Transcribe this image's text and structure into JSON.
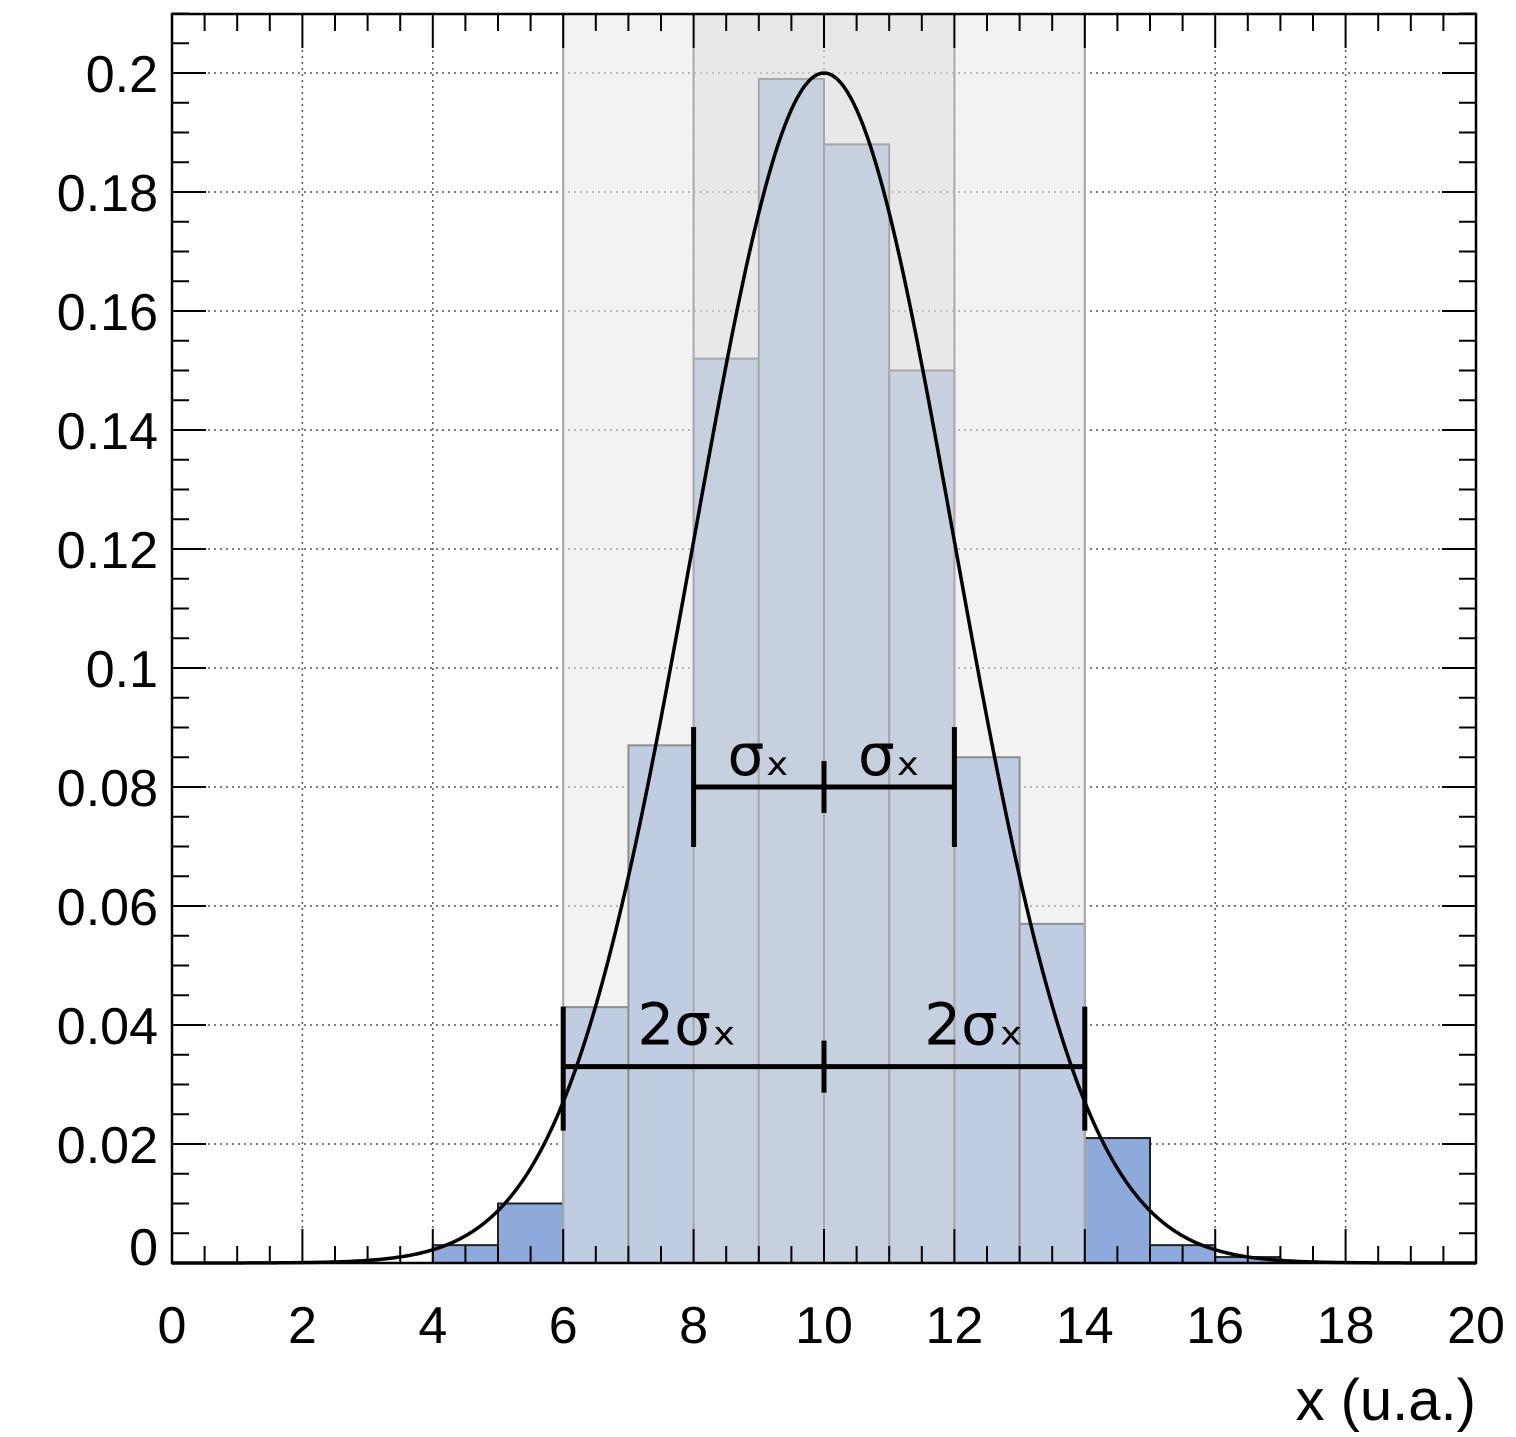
{
  "chart_data": {
    "type": "bar",
    "title": "",
    "xlabel": "x (u.a.)",
    "ylabel": "",
    "xlim": [
      0,
      20
    ],
    "ylim": [
      0,
      0.21
    ],
    "grid": true,
    "x_ticks": [
      "0",
      "2",
      "4",
      "6",
      "8",
      "10",
      "12",
      "14",
      "16",
      "18",
      "20"
    ],
    "y_ticks": [
      "0",
      "0.02",
      "0.04",
      "0.06",
      "0.08",
      "0.1",
      "0.12",
      "0.14",
      "0.16",
      "0.18",
      "0.2"
    ],
    "bin_edges": [
      0,
      1,
      2,
      3,
      4,
      5,
      6,
      7,
      8,
      9,
      10,
      11,
      12,
      13,
      14,
      15,
      16,
      17,
      18,
      19,
      20
    ],
    "values": [
      0,
      0,
      0,
      0,
      0.003,
      0.01,
      0.043,
      0.087,
      0.152,
      0.199,
      0.188,
      0.15,
      0.085,
      0.057,
      0.021,
      0.003,
      0.001,
      0,
      0,
      0
    ],
    "gaussian_fit": {
      "mean": 10,
      "sigma": 2,
      "amplitude": 0.2
    },
    "bands": [
      {
        "from": 6,
        "to": 14,
        "name": "2σ"
      },
      {
        "from": 8,
        "to": 12,
        "name": "1σ"
      }
    ],
    "annotations": [
      {
        "text": "σₓ",
        "x": 9
      },
      {
        "text": "σₓ",
        "x": 11
      },
      {
        "text": "2σₓ",
        "x": 7.9
      },
      {
        "text": "2σₓ",
        "x": 12.3
      }
    ],
    "colors": {
      "bar_fill": "#8eaadb",
      "bar_stroke": "#222222",
      "band_outer": "#e8e8e8",
      "band_inner": "#d6d6d6",
      "curve": "#000000"
    }
  }
}
